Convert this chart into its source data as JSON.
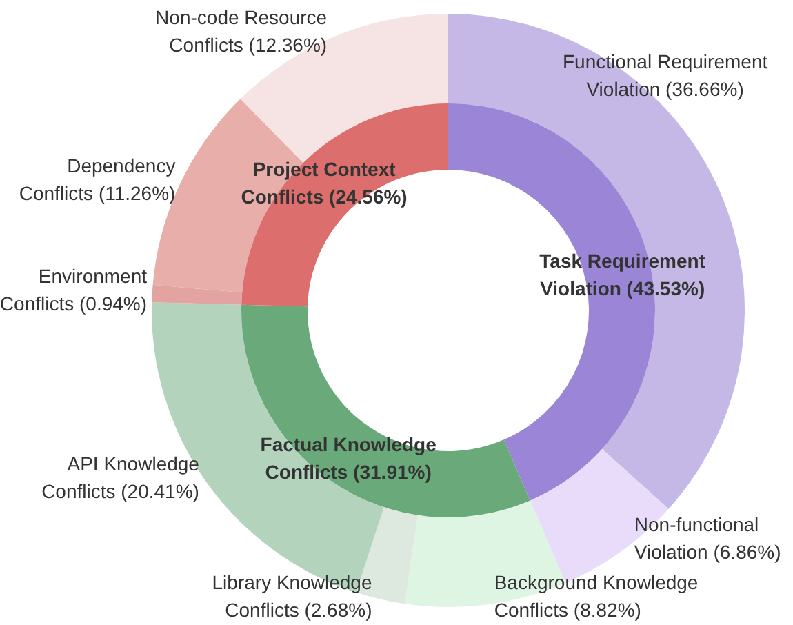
{
  "chart_data": [
    {
      "type": "donut",
      "categories": [
        "Task Requirement\nViolation (43.53%)",
        "Factual Knowledge\nConflicts (31.91%)",
        "Project Context\nConflicts (24.56%)"
      ],
      "values": [
        43.53,
        31.91,
        24.56
      ],
      "colors": [
        "#9a85d6",
        "#6aa97a",
        "#dc6f6d"
      ]
    },
    {
      "type": "donut",
      "categories": [
        "Functional Requirement\nViolation (36.66%)",
        "Non-functional\nViolation (6.86%)",
        "Background Knowledge\nConflicts (8.82%)",
        "Library Knowledge\nConflicts (2.68%)",
        "API Knowledge\nConflicts (20.41%)",
        "Environment\nConflicts (0.94%)",
        "Dependency\nConflicts (11.26%)",
        "Non-code Resource\nConflicts (12.36%)"
      ],
      "values": [
        36.66,
        6.86,
        8.82,
        2.68,
        20.41,
        0.94,
        11.26,
        12.36
      ],
      "colors": [
        "#c5b8e6",
        "#e8dcfa",
        "#def5e3",
        "#dde9df",
        "#b3d3bd",
        "#e3a3a1",
        "#e8aeaa",
        "#f6e3e3"
      ]
    }
  ]
}
